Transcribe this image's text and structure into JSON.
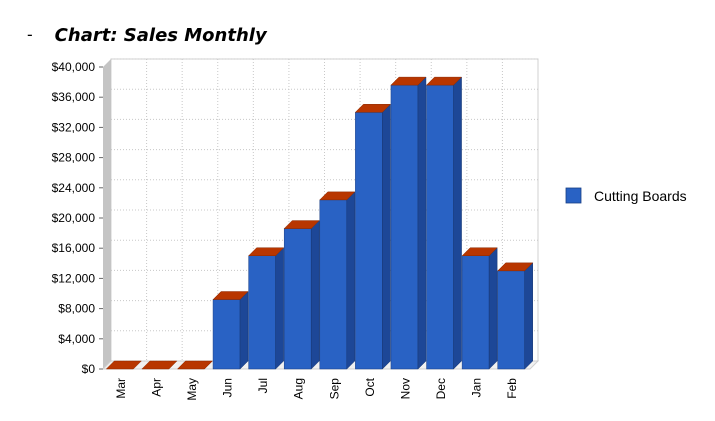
{
  "heading": {
    "bullet": "-",
    "title": "Chart: Sales Monthly"
  },
  "chart_data": {
    "type": "bar",
    "title": "Chart: Sales Monthly",
    "xlabel": "",
    "ylabel": "",
    "categories": [
      "Mar",
      "Apr",
      "May",
      "Jun",
      "Jul",
      "Aug",
      "Sep",
      "Oct",
      "Nov",
      "Dec",
      "Jan",
      "Feb"
    ],
    "series": [
      {
        "name": "Cutting Boards",
        "values": [
          0,
          0,
          0,
          9200,
          15000,
          18600,
          22400,
          34000,
          37600,
          37600,
          15000,
          13000
        ]
      }
    ],
    "ylim": [
      0,
      40000
    ],
    "yticks": [
      0,
      4000,
      8000,
      12000,
      16000,
      20000,
      24000,
      28000,
      32000,
      36000,
      40000
    ],
    "ytick_labels": [
      "$0",
      "$4,000",
      "$8,000",
      "$12,000",
      "$16,000",
      "$20,000",
      "$24,000",
      "$28,000",
      "$32,000",
      "$36,000",
      "$40,000"
    ],
    "grid": true,
    "legend_position": "right",
    "colors": {
      "bar_front": "#2962c4",
      "bar_side": "#1d4797",
      "bar_top": "#b83600",
      "grid": "#c8c8c8",
      "wall": "#c4c4c4"
    }
  }
}
